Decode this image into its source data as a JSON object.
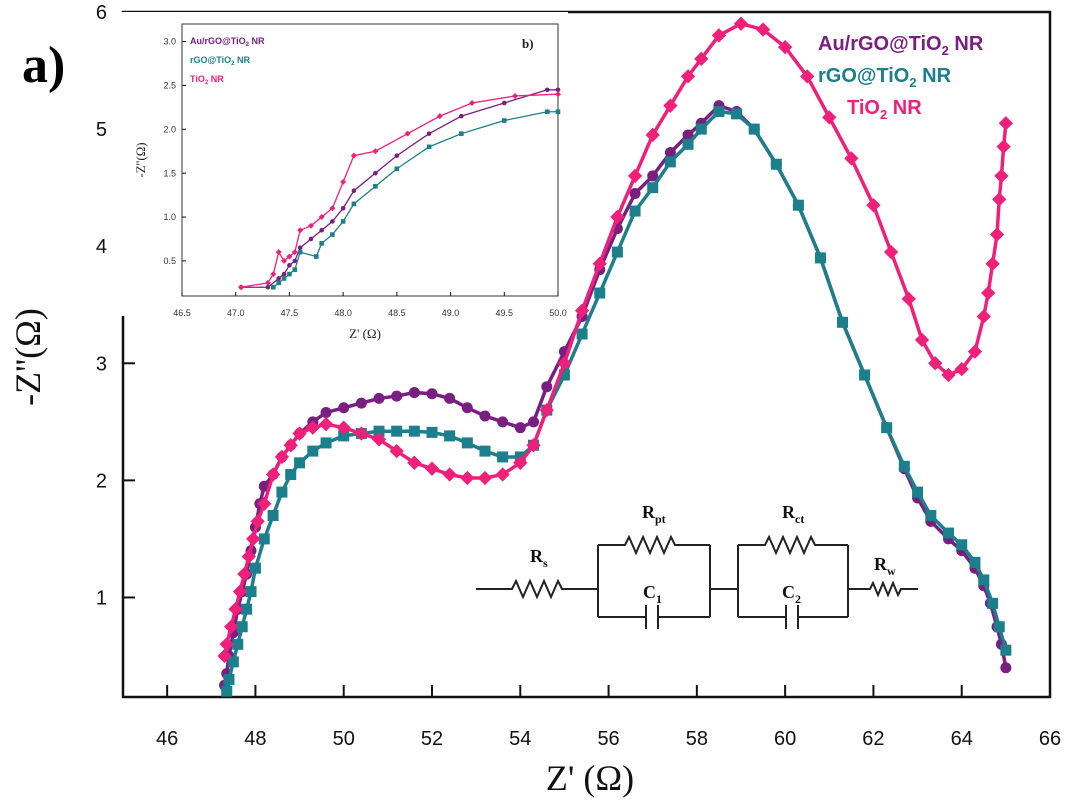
{
  "panel_label": "a)",
  "inset_label": "b)",
  "chart_data": [
    {
      "type": "scatter",
      "title": "",
      "xlabel": "Z' (Ω)",
      "ylabel": "-Z''(Ω)",
      "xlim": [
        45,
        66
      ],
      "ylim": [
        0.15,
        6
      ],
      "xticks": [
        46,
        48,
        50,
        52,
        54,
        56,
        58,
        60,
        62,
        64,
        66
      ],
      "yticks": [
        1,
        2,
        3,
        4,
        5,
        6
      ],
      "legend_position": "top-right",
      "series": [
        {
          "name": "Au/rGO@TiO2 NR",
          "label_main": "Au/rGO@TiO",
          "label_sub": "2",
          "label_tail": " NR",
          "color": "#7a1f82",
          "marker": "circle",
          "x": [
            47.3,
            47.35,
            47.4,
            47.5,
            47.6,
            47.7,
            47.8,
            47.9,
            48.0,
            48.1,
            48.2,
            48.4,
            48.6,
            48.8,
            49.0,
            49.3,
            49.6,
            50.0,
            50.4,
            50.8,
            51.2,
            51.6,
            52.0,
            52.4,
            52.8,
            53.2,
            53.6,
            54.0,
            54.3,
            54.6,
            55.0,
            55.4,
            55.8,
            56.2,
            56.6,
            57.0,
            57.4,
            57.8,
            58.1,
            58.5,
            58.9,
            59.3,
            59.8,
            60.3,
            60.8,
            61.3,
            61.8,
            62.3,
            62.7,
            63.0,
            63.3,
            63.7,
            64.0,
            64.3,
            64.5,
            64.65,
            64.8,
            64.9,
            65.0
          ],
          "y": [
            0.25,
            0.35,
            0.5,
            0.7,
            0.9,
            1.05,
            1.2,
            1.4,
            1.6,
            1.8,
            1.95,
            2.05,
            2.2,
            2.3,
            2.4,
            2.5,
            2.58,
            2.62,
            2.66,
            2.7,
            2.72,
            2.75,
            2.74,
            2.7,
            2.62,
            2.55,
            2.5,
            2.45,
            2.5,
            2.8,
            3.1,
            3.4,
            3.8,
            4.15,
            4.45,
            4.6,
            4.8,
            4.95,
            5.05,
            5.2,
            5.15,
            5.0,
            4.7,
            4.35,
            3.9,
            3.35,
            2.9,
            2.45,
            2.1,
            1.85,
            1.65,
            1.5,
            1.4,
            1.25,
            1.1,
            0.95,
            0.75,
            0.6,
            0.4
          ]
        },
        {
          "name": "rGO@TiO2 NR",
          "label_main": "rGO@TiO",
          "label_sub": "2",
          "label_tail": " NR",
          "color": "#1b7f8c",
          "marker": "square",
          "x": [
            47.35,
            47.4,
            47.5,
            47.6,
            47.7,
            47.8,
            47.9,
            48.0,
            48.2,
            48.4,
            48.6,
            48.8,
            49.0,
            49.3,
            49.6,
            50.0,
            50.4,
            50.8,
            51.2,
            51.6,
            52.0,
            52.4,
            52.8,
            53.2,
            53.6,
            54.0,
            54.3,
            54.6,
            55.0,
            55.4,
            55.8,
            56.2,
            56.6,
            57.0,
            57.4,
            57.8,
            58.1,
            58.5,
            58.9,
            59.3,
            59.8,
            60.3,
            60.8,
            61.3,
            61.8,
            62.3,
            62.7,
            63.0,
            63.3,
            63.7,
            64.0,
            64.3,
            64.5,
            64.7,
            64.85,
            65.0
          ],
          "y": [
            0.2,
            0.3,
            0.45,
            0.6,
            0.75,
            0.9,
            1.05,
            1.25,
            1.5,
            1.7,
            1.9,
            2.05,
            2.15,
            2.25,
            2.32,
            2.38,
            2.4,
            2.42,
            2.42,
            2.42,
            2.41,
            2.38,
            2.32,
            2.25,
            2.2,
            2.2,
            2.3,
            2.6,
            2.9,
            3.25,
            3.6,
            3.95,
            4.3,
            4.5,
            4.72,
            4.87,
            5.0,
            5.15,
            5.13,
            5.0,
            4.7,
            4.35,
            3.9,
            3.35,
            2.9,
            2.45,
            2.12,
            1.9,
            1.7,
            1.55,
            1.45,
            1.3,
            1.15,
            0.95,
            0.75,
            0.55
          ]
        },
        {
          "name": "TiO2 NR",
          "label_main": "TiO",
          "label_sub": "2",
          "label_tail": " NR",
          "color": "#f0207a",
          "marker": "diamond",
          "x": [
            47.3,
            47.35,
            47.45,
            47.55,
            47.65,
            47.75,
            47.85,
            47.95,
            48.05,
            48.2,
            48.4,
            48.6,
            48.8,
            49.0,
            49.3,
            49.6,
            50.0,
            50.4,
            50.8,
            51.2,
            51.6,
            52.0,
            52.4,
            52.8,
            53.2,
            53.6,
            54.0,
            54.3,
            54.6,
            55.0,
            55.4,
            55.8,
            56.2,
            56.6,
            57.0,
            57.4,
            57.8,
            58.1,
            58.5,
            59.0,
            59.5,
            60.0,
            60.5,
            61.0,
            61.5,
            62.0,
            62.4,
            62.8,
            63.1,
            63.4,
            63.7,
            64.0,
            64.3,
            64.5,
            64.6,
            64.7,
            64.8,
            64.85,
            64.9,
            64.95,
            65.0
          ],
          "y": [
            0.5,
            0.6,
            0.75,
            0.9,
            1.05,
            1.2,
            1.35,
            1.5,
            1.65,
            1.8,
            2.05,
            2.2,
            2.3,
            2.4,
            2.45,
            2.48,
            2.45,
            2.4,
            2.35,
            2.25,
            2.15,
            2.1,
            2.05,
            2.02,
            2.02,
            2.05,
            2.15,
            2.3,
            2.6,
            3.0,
            3.45,
            3.85,
            4.25,
            4.6,
            4.95,
            5.2,
            5.45,
            5.6,
            5.8,
            5.9,
            5.85,
            5.7,
            5.45,
            5.1,
            4.75,
            4.35,
            3.95,
            3.55,
            3.2,
            3.0,
            2.9,
            2.95,
            3.1,
            3.4,
            3.6,
            3.85,
            4.1,
            4.4,
            4.6,
            4.85,
            5.05
          ]
        }
      ]
    },
    {
      "type": "line",
      "title": "",
      "xlabel": "Z' (Ω)",
      "ylabel": "-Z''(Ω)",
      "xlim": [
        46.5,
        50.0
      ],
      "ylim": [
        0.1,
        3.2
      ],
      "xticks": [
        46.5,
        47.0,
        47.5,
        48.0,
        48.5,
        49.0,
        49.5,
        50.0
      ],
      "xtick_labels": [
        "46.5",
        "47.0",
        "47.5",
        "48.0",
        "48.5",
        "49.0",
        "49.5",
        "50.0"
      ],
      "yticks": [
        0.5,
        1.0,
        1.5,
        2.0,
        2.5,
        3.0
      ],
      "ytick_labels": [
        "0.5",
        "1.0",
        "1.5",
        "2.0",
        "2.5",
        "3.0"
      ],
      "legend_position": "top-left",
      "series": [
        {
          "name": "Au/rGO@TiO2 NR",
          "label_main": "Au/rGO@TiO",
          "label_sub": "2",
          "label_tail": " NR",
          "color": "#7a1f82",
          "marker": "circle",
          "x": [
            47.05,
            47.3,
            47.4,
            47.45,
            47.5,
            47.55,
            47.6,
            47.7,
            47.8,
            47.9,
            48.0,
            48.1,
            48.3,
            48.5,
            48.8,
            49.1,
            49.5,
            49.9,
            50.0
          ],
          "y": [
            0.2,
            0.2,
            0.3,
            0.35,
            0.45,
            0.5,
            0.65,
            0.75,
            0.85,
            0.95,
            1.1,
            1.3,
            1.5,
            1.7,
            1.95,
            2.15,
            2.3,
            2.45,
            2.45
          ]
        },
        {
          "name": "rGO@TiO2 NR",
          "label_main": "rGO@TiO",
          "label_sub": "2",
          "label_tail": " NR",
          "color": "#1b7f8c",
          "marker": "square",
          "x": [
            47.35,
            47.4,
            47.45,
            47.5,
            47.55,
            47.6,
            47.75,
            47.8,
            47.9,
            48.0,
            48.1,
            48.3,
            48.5,
            48.8,
            49.1,
            49.5,
            49.9,
            50.0
          ],
          "y": [
            0.2,
            0.25,
            0.3,
            0.35,
            0.4,
            0.6,
            0.55,
            0.7,
            0.8,
            0.95,
            1.15,
            1.35,
            1.55,
            1.8,
            1.95,
            2.1,
            2.2,
            2.2
          ]
        },
        {
          "name": "TiO2 NR",
          "label_main": "TiO",
          "label_sub": "2",
          "label_tail": " NR",
          "color": "#f0207a",
          "marker": "diamond",
          "x": [
            47.05,
            47.3,
            47.35,
            47.4,
            47.45,
            47.5,
            47.55,
            47.6,
            47.7,
            47.8,
            47.9,
            48.0,
            48.1,
            48.3,
            48.6,
            48.9,
            49.2,
            49.6,
            50.0
          ],
          "y": [
            0.2,
            0.25,
            0.35,
            0.6,
            0.5,
            0.55,
            0.6,
            0.85,
            0.9,
            1.0,
            1.1,
            1.4,
            1.7,
            1.75,
            1.95,
            2.15,
            2.3,
            2.38,
            2.4
          ]
        }
      ]
    }
  ],
  "circuit": {
    "rs": {
      "main": "R",
      "sub": "s"
    },
    "rpt": {
      "main": "R",
      "sub": "pt"
    },
    "c1": {
      "main": "C",
      "sub": "1"
    },
    "rct": {
      "main": "R",
      "sub": "ct"
    },
    "c2": {
      "main": "C",
      "sub": "2"
    },
    "rw": {
      "main": "R",
      "sub": "w"
    }
  }
}
